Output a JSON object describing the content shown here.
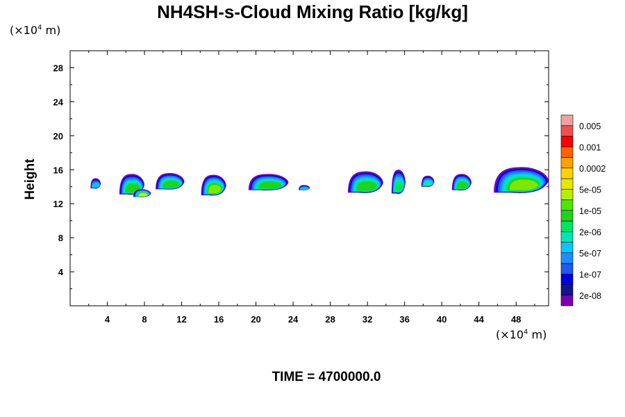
{
  "chart_data": {
    "type": "heatmap",
    "title": "NH4SH-s-Cloud Mixing Ratio [kg/kg]",
    "ylabel": "Height",
    "y_unit": {
      "prefix": "(×10",
      "exp": "4",
      "suffix": " m)"
    },
    "x_unit": {
      "prefix": "(×10",
      "exp": "4",
      "suffix": " m)"
    },
    "xlim": [
      0,
      51.5
    ],
    "ylim": [
      0,
      30
    ],
    "x_ticks": [
      4,
      8,
      12,
      16,
      20,
      24,
      28,
      32,
      36,
      40,
      44,
      48
    ],
    "y_ticks": [
      4,
      8,
      12,
      16,
      20,
      24,
      28
    ],
    "colorbar": {
      "colors": [
        "#7a00b4",
        "#14148c",
        "#0000e6",
        "#1e5af0",
        "#1e8cff",
        "#00c8ff",
        "#00e6b4",
        "#00e664",
        "#1ed21e",
        "#50e600",
        "#b4f000",
        "#e6e600",
        "#ffd200",
        "#ffa000",
        "#ff6400",
        "#ff0000",
        "#f05050",
        "#f0a0a0"
      ],
      "labels": [
        "2e-08",
        "1e-07",
        "5e-07",
        "2e-06",
        "1e-05",
        "5e-05",
        "0.0002",
        "0.001",
        "0.005"
      ]
    },
    "clouds": [
      {
        "x0": 2.2,
        "x1": 3.3,
        "ytop": 15.0,
        "ybot": 13.8,
        "core": 0.1
      },
      {
        "x0": 5.3,
        "x1": 8.0,
        "ytop": 15.5,
        "ybot": 13.1,
        "core": 0.35
      },
      {
        "x0": 6.8,
        "x1": 8.7,
        "ytop": 13.7,
        "ybot": 12.8,
        "core": 0.5
      },
      {
        "x0": 9.2,
        "x1": 12.3,
        "ytop": 15.6,
        "ybot": 13.7,
        "core": 0.3
      },
      {
        "x0": 14.1,
        "x1": 16.8,
        "ytop": 15.4,
        "ybot": 13.0,
        "core": 0.4
      },
      {
        "x0": 19.2,
        "x1": 23.5,
        "ytop": 15.5,
        "ybot": 13.6,
        "core": 0.35
      },
      {
        "x0": 24.6,
        "x1": 25.8,
        "ytop": 14.2,
        "ybot": 13.6,
        "core": 0.1
      },
      {
        "x0": 29.9,
        "x1": 33.7,
        "ytop": 15.8,
        "ybot": 13.3,
        "core": 0.35
      },
      {
        "x0": 34.6,
        "x1": 36.1,
        "ytop": 16.0,
        "ybot": 13.2,
        "core": 0.25
      },
      {
        "x0": 37.8,
        "x1": 39.2,
        "ytop": 15.3,
        "ybot": 14.0,
        "core": 0.15
      },
      {
        "x0": 41.1,
        "x1": 43.2,
        "ytop": 15.5,
        "ybot": 13.6,
        "core": 0.3
      },
      {
        "x0": 45.6,
        "x1": 51.5,
        "ytop": 16.3,
        "ybot": 13.3,
        "core": 0.45
      }
    ]
  },
  "time_label": "TIME = 4700000.0"
}
